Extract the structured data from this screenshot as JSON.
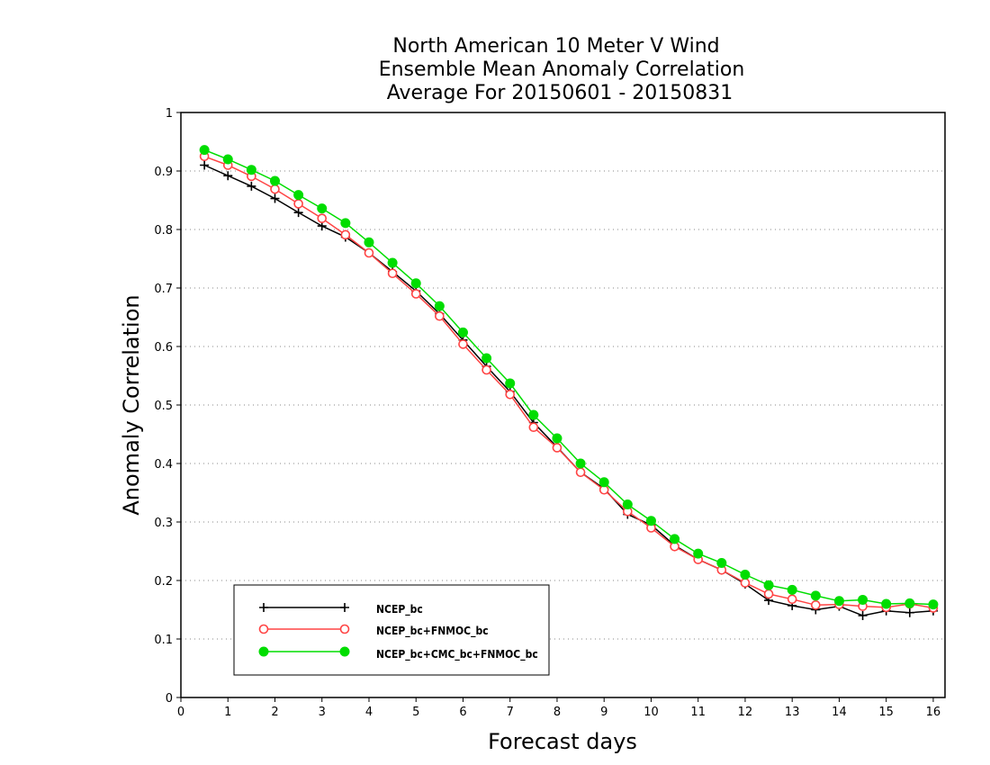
{
  "chart_data": {
    "type": "line",
    "title_lines": [
      "North American 10 Meter V Wind",
      "Ensemble Mean Anomaly Correlation",
      "Average For 20150601 - 20150831"
    ],
    "xlabel": "Forecast days",
    "ylabel": "Anomaly Correlation",
    "xlim": [
      0,
      16.25
    ],
    "ylim": [
      0,
      1
    ],
    "xticks": [
      0,
      1,
      2,
      3,
      4,
      5,
      6,
      7,
      8,
      9,
      10,
      11,
      12,
      13,
      14,
      15,
      16
    ],
    "yticks": [
      0,
      0.1,
      0.2,
      0.3,
      0.4,
      0.5,
      0.6,
      0.7,
      0.8,
      0.9,
      1
    ],
    "ytick_labels": [
      "0",
      "0.1",
      "0.2",
      "0.3",
      "0.4",
      "0.5",
      "0.6",
      "0.7",
      "0.8",
      "0.9",
      "1"
    ],
    "grid": "horizontal dotted",
    "legend_position": "bottom-left",
    "x": [
      0.5,
      1.0,
      1.5,
      2.0,
      2.5,
      3.0,
      3.5,
      4.0,
      4.5,
      5.0,
      5.5,
      6.0,
      6.5,
      7.0,
      7.5,
      8.0,
      8.5,
      9.0,
      9.5,
      10.0,
      10.5,
      11.0,
      11.5,
      12.0,
      12.5,
      13.0,
      13.5,
      14.0,
      14.5,
      15.0,
      15.5,
      16.0
    ],
    "series": [
      {
        "name": "NCEP_bc",
        "color": "#000000",
        "marker": "plus",
        "values": [
          0.91,
          0.892,
          0.874,
          0.853,
          0.829,
          0.806,
          0.787,
          0.76,
          0.728,
          0.695,
          0.656,
          0.611,
          0.566,
          0.523,
          0.47,
          0.428,
          0.385,
          0.357,
          0.313,
          0.295,
          0.26,
          0.236,
          0.218,
          0.194,
          0.166,
          0.157,
          0.15,
          0.156,
          0.14,
          0.148,
          0.145,
          0.148
        ]
      },
      {
        "name": "NCEP_bc+FNMOC_bc",
        "color": "#ff4444",
        "marker": "open-circle",
        "values": [
          0.925,
          0.91,
          0.891,
          0.869,
          0.844,
          0.819,
          0.791,
          0.76,
          0.725,
          0.69,
          0.652,
          0.604,
          0.56,
          0.518,
          0.462,
          0.427,
          0.385,
          0.355,
          0.318,
          0.29,
          0.258,
          0.236,
          0.218,
          0.196,
          0.177,
          0.168,
          0.158,
          0.159,
          0.156,
          0.154,
          0.16,
          0.153
        ]
      },
      {
        "name": "NCEP_bc+CMC_bc+FNMOC_bc",
        "color": "#00dd00",
        "marker": "filled-circle",
        "values": [
          0.936,
          0.92,
          0.902,
          0.883,
          0.859,
          0.836,
          0.811,
          0.778,
          0.743,
          0.708,
          0.669,
          0.624,
          0.58,
          0.537,
          0.483,
          0.443,
          0.4,
          0.368,
          0.33,
          0.302,
          0.271,
          0.246,
          0.23,
          0.21,
          0.192,
          0.184,
          0.174,
          0.165,
          0.167,
          0.16,
          0.161,
          0.159
        ]
      }
    ]
  }
}
